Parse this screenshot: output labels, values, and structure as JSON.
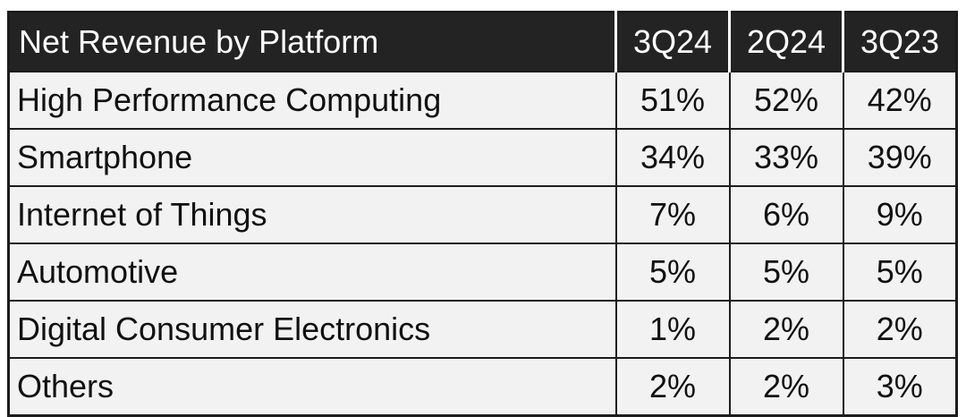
{
  "chart_data": {
    "type": "table",
    "title": "Net Revenue by Platform",
    "columns": [
      "3Q24",
      "2Q24",
      "3Q23"
    ],
    "rows": [
      {
        "label": "High Performance Computing",
        "values": [
          "51%",
          "52%",
          "42%"
        ]
      },
      {
        "label": "Smartphone",
        "values": [
          "34%",
          "33%",
          "39%"
        ]
      },
      {
        "label": "Internet of Things",
        "values": [
          "7%",
          "6%",
          "9%"
        ]
      },
      {
        "label": "Automotive",
        "values": [
          "5%",
          "5%",
          "5%"
        ]
      },
      {
        "label": "Digital Consumer Electronics",
        "values": [
          "1%",
          "2%",
          "2%"
        ]
      },
      {
        "label": "Others",
        "values": [
          "2%",
          "2%",
          "3%"
        ]
      }
    ]
  },
  "colors": {
    "header_bg": "#232323",
    "header_text": "#ffffff",
    "body_bg": "#f2f2f2",
    "body_text": "#111111",
    "border": "#1c1c1c"
  }
}
